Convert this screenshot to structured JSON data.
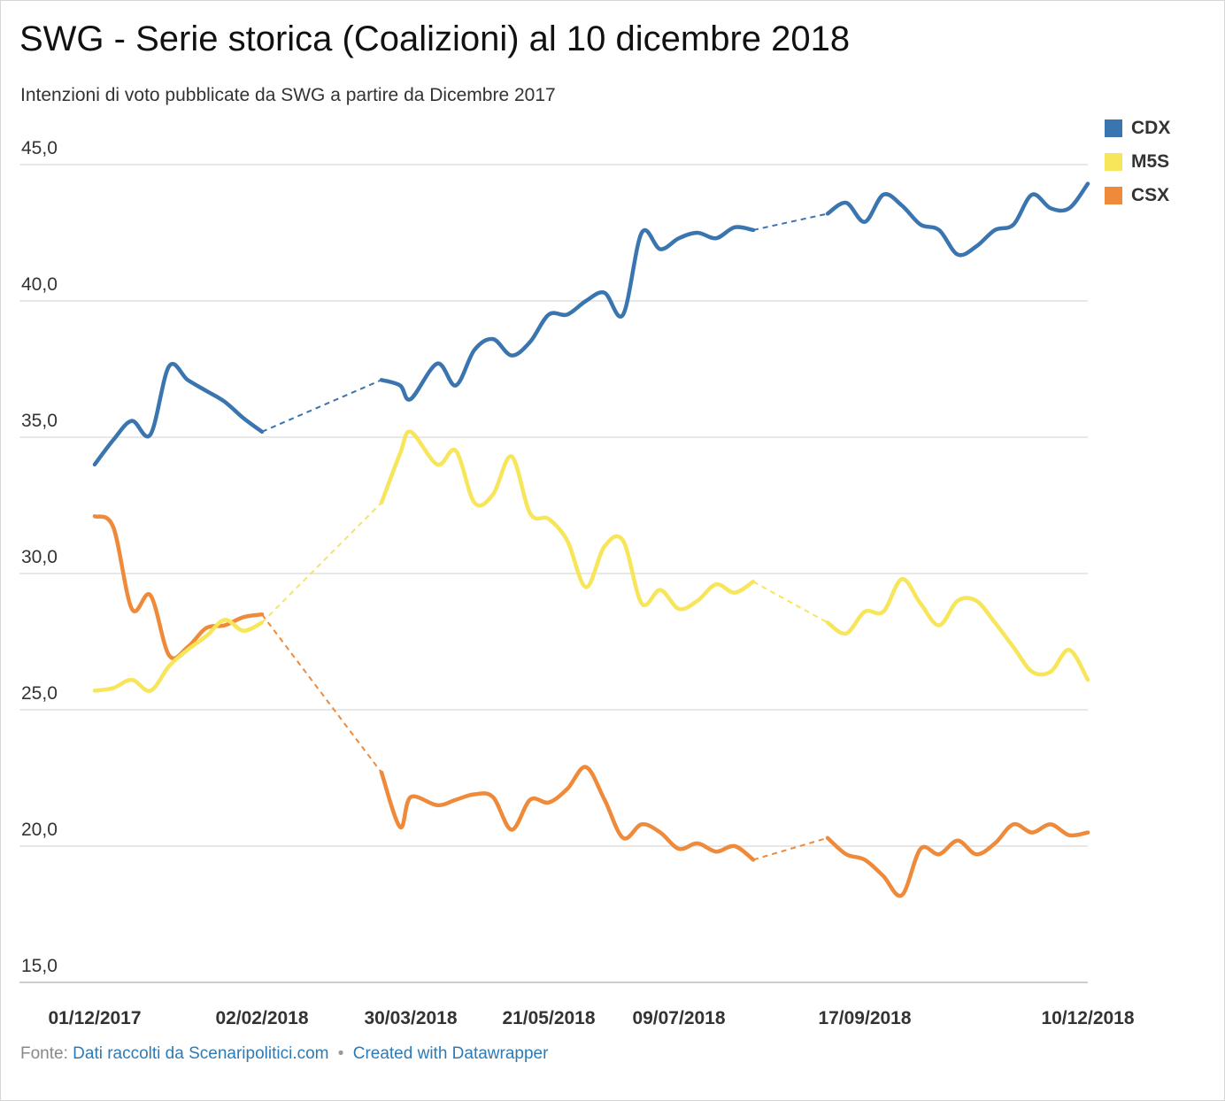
{
  "title": "SWG - Serie storica (Coalizioni) al 10 dicembre 2018",
  "subtitle": "Intenzioni di voto pubblicate da SWG a partire da Dicembre 2017",
  "footer": {
    "prefix": "Fonte:",
    "source": "Dati raccolti da Scenaripolitici.com",
    "separator": "•",
    "credit": "Created with Datawrapper"
  },
  "chart_data": {
    "type": "line",
    "title": "SWG - Serie storica (Coalizioni) al 10 dicembre 2018",
    "subtitle": "Intenzioni di voto pubblicate da SWG a partire da Dicembre 2017",
    "xlabel": "",
    "ylabel": "",
    "ylim": [
      15,
      45
    ],
    "yticks": [
      "45,0",
      "40,0",
      "35,0",
      "30,0",
      "25,0",
      "20,0",
      "15,0"
    ],
    "ytick_values": [
      45,
      40,
      35,
      30,
      25,
      20,
      15
    ],
    "x_tick_labels": [
      {
        "date": "2017-12-01",
        "label": "01/12/2017"
      },
      {
        "date": "2018-02-02",
        "label": "02/02/2018"
      },
      {
        "date": "2018-03-30",
        "label": "30/03/2018"
      },
      {
        "date": "2018-05-21",
        "label": "21/05/2018"
      },
      {
        "date": "2018-07-09",
        "label": "09/07/2018"
      },
      {
        "date": "2018-09-17",
        "label": "17/09/2018"
      },
      {
        "date": "2018-12-10",
        "label": "10/12/2018"
      }
    ],
    "grid": true,
    "legend_position": "top-right",
    "gaps_drawn_dashed": true,
    "series": [
      {
        "name": "CDX",
        "color": "#3a75b0",
        "points": [
          [
            "2017-12-01",
            34.0
          ],
          [
            "2017-12-08",
            34.9
          ],
          [
            "2017-12-15",
            35.6
          ],
          [
            "2017-12-22",
            35.1
          ],
          [
            "2017-12-29",
            37.6
          ],
          [
            "2018-01-05",
            37.1
          ],
          [
            "2018-01-12",
            36.7
          ],
          [
            "2018-01-19",
            36.3
          ],
          [
            "2018-01-26",
            35.7
          ],
          [
            "2018-02-02",
            35.2
          ],
          [
            "2018-03-19",
            37.1
          ],
          [
            "2018-03-26",
            36.9
          ],
          [
            "2018-03-30",
            36.4
          ],
          [
            "2018-04-09",
            37.7
          ],
          [
            "2018-04-16",
            36.9
          ],
          [
            "2018-04-23",
            38.2
          ],
          [
            "2018-04-30",
            38.6
          ],
          [
            "2018-05-07",
            38.0
          ],
          [
            "2018-05-14",
            38.5
          ],
          [
            "2018-05-21",
            39.5
          ],
          [
            "2018-05-28",
            39.5
          ],
          [
            "2018-06-04",
            40.0
          ],
          [
            "2018-06-11",
            40.3
          ],
          [
            "2018-06-18",
            39.5
          ],
          [
            "2018-06-25",
            42.5
          ],
          [
            "2018-07-02",
            41.9
          ],
          [
            "2018-07-09",
            42.3
          ],
          [
            "2018-07-16",
            42.5
          ],
          [
            "2018-07-23",
            42.3
          ],
          [
            "2018-07-30",
            42.7
          ],
          [
            "2018-08-06",
            42.6
          ],
          [
            "2018-09-03",
            43.2
          ],
          [
            "2018-09-10",
            43.6
          ],
          [
            "2018-09-17",
            42.9
          ],
          [
            "2018-09-24",
            43.9
          ],
          [
            "2018-10-01",
            43.5
          ],
          [
            "2018-10-08",
            42.8
          ],
          [
            "2018-10-15",
            42.6
          ],
          [
            "2018-10-22",
            41.7
          ],
          [
            "2018-10-29",
            42.0
          ],
          [
            "2018-11-05",
            42.6
          ],
          [
            "2018-11-12",
            42.8
          ],
          [
            "2018-11-19",
            43.9
          ],
          [
            "2018-11-26",
            43.4
          ],
          [
            "2018-12-03",
            43.4
          ],
          [
            "2018-12-10",
            44.3
          ]
        ]
      },
      {
        "name": "M5S",
        "color": "#f7e55a",
        "points": [
          [
            "2017-12-01",
            25.7
          ],
          [
            "2017-12-08",
            25.8
          ],
          [
            "2017-12-15",
            26.1
          ],
          [
            "2017-12-22",
            25.7
          ],
          [
            "2017-12-29",
            26.6
          ],
          [
            "2018-01-05",
            27.2
          ],
          [
            "2018-01-12",
            27.7
          ],
          [
            "2018-01-19",
            28.3
          ],
          [
            "2018-01-26",
            27.9
          ],
          [
            "2018-02-02",
            28.2
          ],
          [
            "2018-03-19",
            32.6
          ],
          [
            "2018-03-26",
            34.4
          ],
          [
            "2018-03-30",
            35.2
          ],
          [
            "2018-04-09",
            34.0
          ],
          [
            "2018-04-16",
            34.5
          ],
          [
            "2018-04-23",
            32.6
          ],
          [
            "2018-04-30",
            32.9
          ],
          [
            "2018-05-07",
            34.3
          ],
          [
            "2018-05-14",
            32.2
          ],
          [
            "2018-05-21",
            32.0
          ],
          [
            "2018-05-28",
            31.2
          ],
          [
            "2018-06-04",
            29.5
          ],
          [
            "2018-06-11",
            31.0
          ],
          [
            "2018-06-18",
            31.2
          ],
          [
            "2018-06-25",
            28.9
          ],
          [
            "2018-07-02",
            29.4
          ],
          [
            "2018-07-09",
            28.7
          ],
          [
            "2018-07-16",
            29.0
          ],
          [
            "2018-07-23",
            29.6
          ],
          [
            "2018-07-30",
            29.3
          ],
          [
            "2018-08-06",
            29.7
          ],
          [
            "2018-09-03",
            28.2
          ],
          [
            "2018-09-10",
            27.8
          ],
          [
            "2018-09-17",
            28.6
          ],
          [
            "2018-09-24",
            28.6
          ],
          [
            "2018-10-01",
            29.8
          ],
          [
            "2018-10-08",
            28.9
          ],
          [
            "2018-10-15",
            28.1
          ],
          [
            "2018-10-22",
            29.0
          ],
          [
            "2018-10-29",
            29.0
          ],
          [
            "2018-11-05",
            28.2
          ],
          [
            "2018-11-12",
            27.3
          ],
          [
            "2018-11-19",
            26.4
          ],
          [
            "2018-11-26",
            26.4
          ],
          [
            "2018-12-03",
            27.2
          ],
          [
            "2018-12-10",
            26.1
          ]
        ]
      },
      {
        "name": "CSX",
        "color": "#ee8a3a",
        "points": [
          [
            "2017-12-01",
            32.1
          ],
          [
            "2017-12-08",
            31.7
          ],
          [
            "2017-12-15",
            28.7
          ],
          [
            "2017-12-22",
            29.2
          ],
          [
            "2017-12-29",
            27.0
          ],
          [
            "2018-01-05",
            27.3
          ],
          [
            "2018-01-12",
            28.0
          ],
          [
            "2018-01-19",
            28.1
          ],
          [
            "2018-01-26",
            28.4
          ],
          [
            "2018-02-02",
            28.5
          ],
          [
            "2018-03-19",
            22.7
          ],
          [
            "2018-03-26",
            20.7
          ],
          [
            "2018-03-30",
            21.8
          ],
          [
            "2018-04-09",
            21.5
          ],
          [
            "2018-04-16",
            21.7
          ],
          [
            "2018-04-23",
            21.9
          ],
          [
            "2018-04-30",
            21.8
          ],
          [
            "2018-05-07",
            20.6
          ],
          [
            "2018-05-14",
            21.7
          ],
          [
            "2018-05-21",
            21.6
          ],
          [
            "2018-05-28",
            22.1
          ],
          [
            "2018-06-04",
            22.9
          ],
          [
            "2018-06-11",
            21.7
          ],
          [
            "2018-06-18",
            20.3
          ],
          [
            "2018-06-25",
            20.8
          ],
          [
            "2018-07-02",
            20.5
          ],
          [
            "2018-07-09",
            19.9
          ],
          [
            "2018-07-16",
            20.1
          ],
          [
            "2018-07-23",
            19.8
          ],
          [
            "2018-07-30",
            20.0
          ],
          [
            "2018-08-06",
            19.5
          ],
          [
            "2018-09-03",
            20.3
          ],
          [
            "2018-09-10",
            19.7
          ],
          [
            "2018-09-17",
            19.5
          ],
          [
            "2018-09-24",
            18.9
          ],
          [
            "2018-10-01",
            18.2
          ],
          [
            "2018-10-08",
            19.9
          ],
          [
            "2018-10-15",
            19.7
          ],
          [
            "2018-10-22",
            20.2
          ],
          [
            "2018-10-29",
            19.7
          ],
          [
            "2018-11-05",
            20.1
          ],
          [
            "2018-11-12",
            20.8
          ],
          [
            "2018-11-19",
            20.5
          ],
          [
            "2018-11-26",
            20.8
          ],
          [
            "2018-12-03",
            20.4
          ],
          [
            "2018-12-10",
            20.5
          ]
        ]
      }
    ]
  }
}
